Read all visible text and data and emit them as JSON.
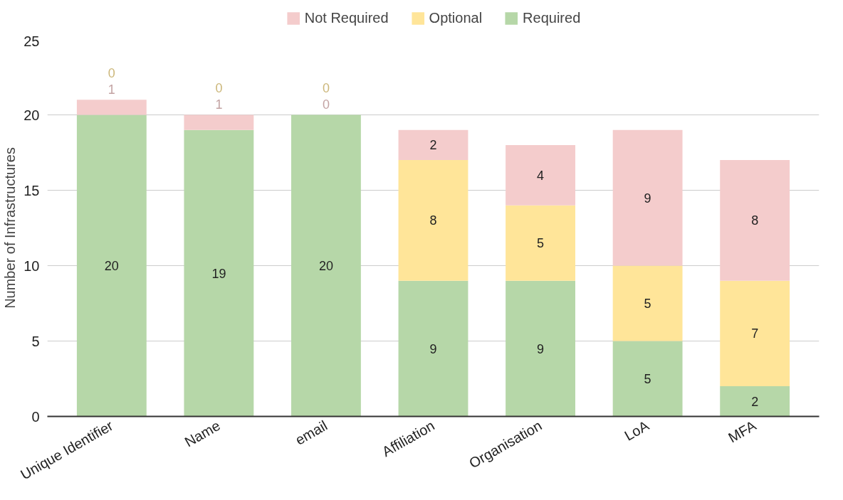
{
  "chart_data": {
    "type": "bar",
    "stacked": true,
    "ylabel": "Number of Infrastructures",
    "categories": [
      "Unique Identifier",
      "Name",
      "email",
      "Affiliation",
      "Organisation",
      "LoA",
      "MFA"
    ],
    "series": [
      {
        "name": "Required",
        "color": "#b6d7a8",
        "values": [
          20,
          19,
          20,
          9,
          9,
          5,
          2
        ]
      },
      {
        "name": "Optional",
        "color": "#ffe599",
        "values": [
          0,
          0,
          0,
          8,
          5,
          5,
          7
        ]
      },
      {
        "name": "Not Required",
        "color": "#f4cccc",
        "values": [
          1,
          1,
          0,
          2,
          4,
          9,
          8
        ]
      }
    ],
    "ylim": [
      0,
      25
    ],
    "yticks": [
      0,
      5,
      10,
      15,
      20,
      25
    ],
    "grid": "y",
    "legend": "top",
    "data_labels": true
  }
}
